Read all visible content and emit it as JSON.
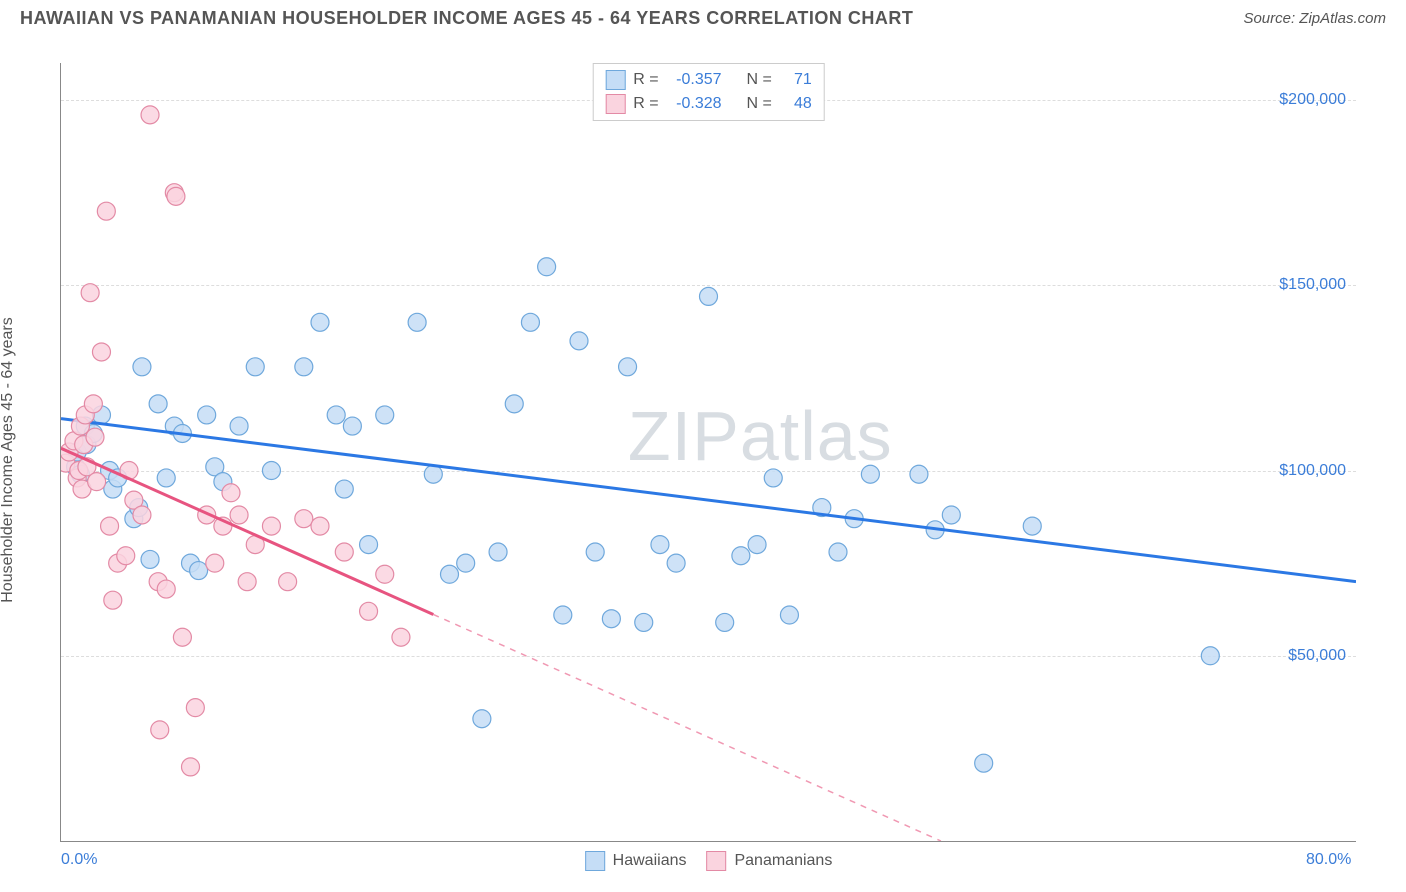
{
  "title": "HAWAIIAN VS PANAMANIAN HOUSEHOLDER INCOME AGES 45 - 64 YEARS CORRELATION CHART",
  "source_label": "Source: ZipAtlas.com",
  "watermark": "ZIPatlas",
  "chart": {
    "type": "scatter",
    "y_axis_title": "Householder Income Ages 45 - 64 years",
    "xlim": [
      0,
      80
    ],
    "ylim": [
      0,
      210000
    ],
    "x_ticks": [
      {
        "val": 0,
        "label": "0.0%"
      },
      {
        "val": 80,
        "label": "80.0%"
      }
    ],
    "y_ticks": [
      {
        "val": 50000,
        "label": "$50,000"
      },
      {
        "val": 100000,
        "label": "$100,000"
      },
      {
        "val": 150000,
        "label": "$150,000"
      },
      {
        "val": 200000,
        "label": "$200,000"
      }
    ],
    "grid_color": "#dddddd",
    "background_color": "#ffffff",
    "series": [
      {
        "name": "Hawaiians",
        "fill": "#c5ddf6",
        "stroke": "#6fa8dc",
        "line_color": "#2b78e4",
        "r_value": "-0.357",
        "n_value": "71",
        "trend": {
          "x1": 0,
          "y1": 114000,
          "x2": 80,
          "y2": 70000,
          "solid_until_x": 80
        },
        "points": [
          [
            0.9,
            101000
          ],
          [
            1.0,
            105000
          ],
          [
            1.2,
            99000
          ],
          [
            1.5,
            112000
          ],
          [
            1.6,
            107000
          ],
          [
            2.0,
            110000
          ],
          [
            2.5,
            115000
          ],
          [
            3.0,
            100000
          ],
          [
            3.2,
            95000
          ],
          [
            3.5,
            98000
          ],
          [
            4.5,
            87000
          ],
          [
            4.8,
            90000
          ],
          [
            5.0,
            128000
          ],
          [
            5.5,
            76000
          ],
          [
            6.0,
            118000
          ],
          [
            6.5,
            98000
          ],
          [
            7.0,
            112000
          ],
          [
            7.5,
            110000
          ],
          [
            8.0,
            75000
          ],
          [
            8.5,
            73000
          ],
          [
            9.0,
            115000
          ],
          [
            9.5,
            101000
          ],
          [
            10.0,
            97000
          ],
          [
            11.0,
            112000
          ],
          [
            12.0,
            128000
          ],
          [
            13.0,
            100000
          ],
          [
            15.0,
            128000
          ],
          [
            16.0,
            140000
          ],
          [
            17.0,
            115000
          ],
          [
            17.5,
            95000
          ],
          [
            18.0,
            112000
          ],
          [
            19.0,
            80000
          ],
          [
            20.0,
            115000
          ],
          [
            22.0,
            140000
          ],
          [
            23.0,
            99000
          ],
          [
            24.0,
            72000
          ],
          [
            25.0,
            75000
          ],
          [
            26.0,
            33000
          ],
          [
            27.0,
            78000
          ],
          [
            28.0,
            118000
          ],
          [
            29.0,
            140000
          ],
          [
            30.0,
            155000
          ],
          [
            31.0,
            61000
          ],
          [
            32.0,
            135000
          ],
          [
            33.0,
            78000
          ],
          [
            34.0,
            60000
          ],
          [
            35.0,
            128000
          ],
          [
            36.0,
            59000
          ],
          [
            37.0,
            80000
          ],
          [
            38.0,
            75000
          ],
          [
            40.0,
            147000
          ],
          [
            41.0,
            59000
          ],
          [
            42.0,
            77000
          ],
          [
            43.0,
            80000
          ],
          [
            44.0,
            98000
          ],
          [
            45.0,
            61000
          ],
          [
            47.0,
            90000
          ],
          [
            48.0,
            78000
          ],
          [
            49.0,
            87000
          ],
          [
            50.0,
            99000
          ],
          [
            53.0,
            99000
          ],
          [
            54.0,
            84000
          ],
          [
            55.0,
            88000
          ],
          [
            57.0,
            21000
          ],
          [
            60.0,
            85000
          ],
          [
            71.0,
            50000
          ]
        ]
      },
      {
        "name": "Panamanians",
        "fill": "#fad4df",
        "stroke": "#e38aa5",
        "line_color": "#e75480",
        "r_value": "-0.328",
        "n_value": "48",
        "trend": {
          "x1": 0,
          "y1": 106000,
          "x2": 80,
          "y2": -50000,
          "solid_until_x": 23
        },
        "points": [
          [
            0.3,
            102000
          ],
          [
            0.5,
            105000
          ],
          [
            0.8,
            108000
          ],
          [
            1.0,
            98000
          ],
          [
            1.1,
            100000
          ],
          [
            1.2,
            112000
          ],
          [
            1.3,
            95000
          ],
          [
            1.4,
            107000
          ],
          [
            1.5,
            115000
          ],
          [
            1.6,
            101000
          ],
          [
            1.8,
            148000
          ],
          [
            2.0,
            118000
          ],
          [
            2.1,
            109000
          ],
          [
            2.2,
            97000
          ],
          [
            2.5,
            132000
          ],
          [
            2.8,
            170000
          ],
          [
            3.0,
            85000
          ],
          [
            3.2,
            65000
          ],
          [
            3.5,
            75000
          ],
          [
            4.0,
            77000
          ],
          [
            4.2,
            100000
          ],
          [
            4.5,
            92000
          ],
          [
            5.0,
            88000
          ],
          [
            5.5,
            196000
          ],
          [
            6.0,
            70000
          ],
          [
            6.1,
            30000
          ],
          [
            6.5,
            68000
          ],
          [
            7.0,
            175000
          ],
          [
            7.1,
            174000
          ],
          [
            7.5,
            55000
          ],
          [
            8.0,
            20000
          ],
          [
            8.3,
            36000
          ],
          [
            9.0,
            88000
          ],
          [
            9.5,
            75000
          ],
          [
            10.0,
            85000
          ],
          [
            10.5,
            94000
          ],
          [
            11.0,
            88000
          ],
          [
            11.5,
            70000
          ],
          [
            12.0,
            80000
          ],
          [
            13.0,
            85000
          ],
          [
            14.0,
            70000
          ],
          [
            15.0,
            87000
          ],
          [
            16.0,
            85000
          ],
          [
            17.5,
            78000
          ],
          [
            19.0,
            62000
          ],
          [
            20.0,
            72000
          ],
          [
            21.0,
            55000
          ]
        ]
      }
    ]
  },
  "stats_labels": {
    "r": "R =",
    "n": "N ="
  }
}
